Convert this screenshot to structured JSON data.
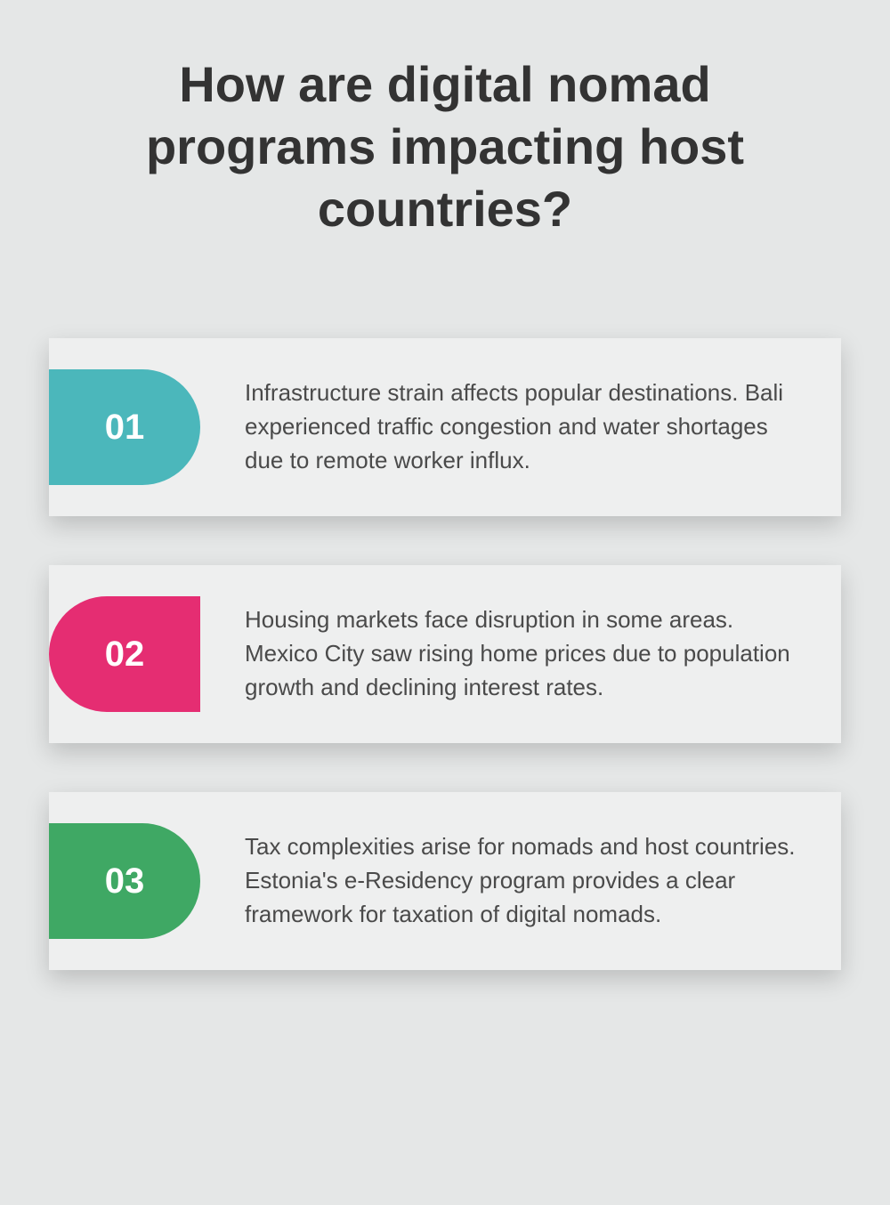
{
  "title": "How are digital nomad programs impacting host countries?",
  "background_color": "#e5e7e7",
  "card_background": "#eeefef",
  "title_color": "#333333",
  "text_color": "#4a4a4a",
  "title_fontsize": 56,
  "body_fontsize": 26,
  "badge_fontsize": 40,
  "cards": [
    {
      "number": "01",
      "side": "left",
      "badge_color": "#4bb7bb",
      "text": "Infrastructure strain affects popular destinations. Bali experienced traffic congestion and water shortages due to remote worker influx."
    },
    {
      "number": "02",
      "side": "right",
      "badge_color": "#e52d72",
      "text": "Housing markets face disruption in some areas. Mexico City saw rising home prices due to population growth and declining interest rates."
    },
    {
      "number": "03",
      "side": "left",
      "badge_color": "#3fa864",
      "text": "Tax complexities arise for nomads and host countries. Estonia's e-Residency program provides a clear framework for taxation of digital nomads."
    }
  ]
}
